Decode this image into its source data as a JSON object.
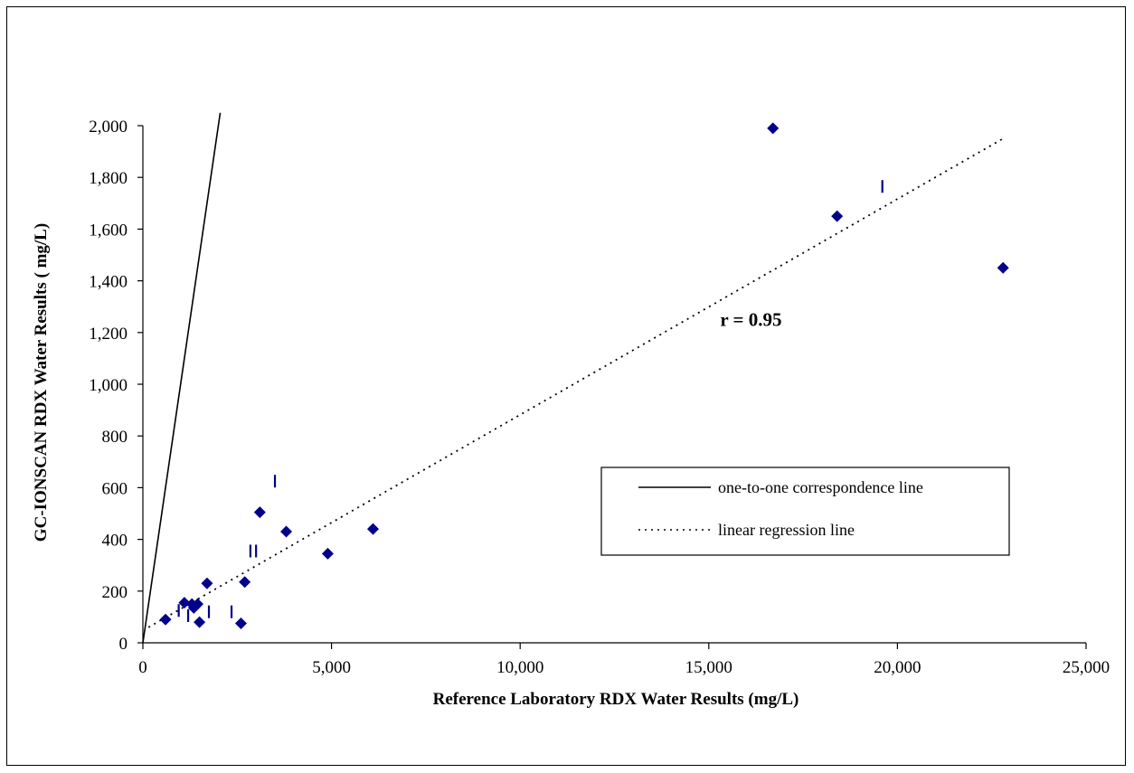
{
  "chart_data": {
    "type": "scatter",
    "title": "",
    "xlabel": "Reference Laboratory RDX Water Results (mg/L)",
    "ylabel": "GC-IONSCAN RDX Water Results (  mg/L)",
    "xlim": [
      0,
      25000
    ],
    "ylim": [
      0,
      2000
    ],
    "x_ticks": [
      "0",
      "5,000",
      "10,000",
      "15,000",
      "20,000",
      "25,000"
    ],
    "y_ticks": [
      "0",
      "200",
      "400",
      "600",
      "800",
      "1,000",
      "1,200",
      "1,400",
      "1,600",
      "1,800",
      "2,000"
    ],
    "x_tick_values": [
      0,
      5000,
      10000,
      15000,
      20000,
      25000
    ],
    "y_tick_values": [
      0,
      200,
      400,
      600,
      800,
      1000,
      1200,
      1400,
      1600,
      1800,
      2000
    ],
    "grid": false,
    "series": [
      {
        "marker": "diamond",
        "color": "#00008b",
        "points": [
          {
            "x": 600,
            "y": 90
          },
          {
            "x": 1100,
            "y": 155
          },
          {
            "x": 1300,
            "y": 150
          },
          {
            "x": 1350,
            "y": 135
          },
          {
            "x": 1450,
            "y": 150
          },
          {
            "x": 1500,
            "y": 80
          },
          {
            "x": 1700,
            "y": 230
          },
          {
            "x": 2600,
            "y": 75
          },
          {
            "x": 2700,
            "y": 235
          },
          {
            "x": 3100,
            "y": 505
          },
          {
            "x": 3800,
            "y": 430
          },
          {
            "x": 4900,
            "y": 345
          },
          {
            "x": 6100,
            "y": 440
          },
          {
            "x": 16700,
            "y": 1990
          },
          {
            "x": 18400,
            "y": 1650
          },
          {
            "x": 22800,
            "y": 1450
          }
        ]
      },
      {
        "marker": "tick",
        "color": "#00008b",
        "points": [
          {
            "x": 950,
            "y": 125
          },
          {
            "x": 1200,
            "y": 105
          },
          {
            "x": 1750,
            "y": 120
          },
          {
            "x": 2350,
            "y": 120
          },
          {
            "x": 2850,
            "y": 355
          },
          {
            "x": 3000,
            "y": 355
          },
          {
            "x": 3500,
            "y": 625
          },
          {
            "x": 19600,
            "y": 1765
          }
        ]
      },
      {
        "name": "one-to-one correspondence line",
        "style": "solid",
        "color": "#000000",
        "x": [
          0,
          2050
        ],
        "y": [
          0,
          2050
        ]
      },
      {
        "name": "linear regression line",
        "style": "dotted",
        "color": "#000000",
        "x": [
          150,
          22800
        ],
        "y": [
          60,
          1950
        ]
      }
    ],
    "legend": {
      "position": "right-center",
      "entries": [
        "one-to-one correspondence line",
        "linear regression line"
      ]
    },
    "annotations": [
      {
        "text": "r = 0.95",
        "x": 15300,
        "y": 1250
      }
    ]
  }
}
